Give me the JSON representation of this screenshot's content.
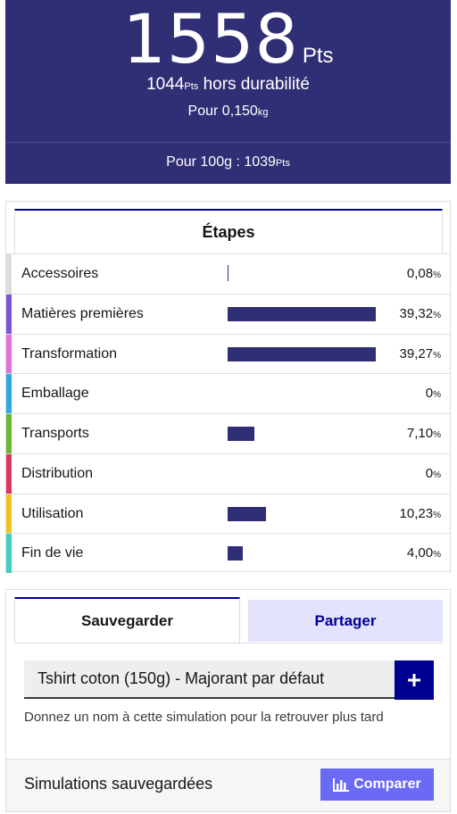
{
  "score": {
    "total": "1558",
    "unit": "Pts",
    "without_durability_value": "1044",
    "without_durability_unit": "Pts",
    "without_durability_label": "hors durabilité",
    "weight_prefix": "Pour 0,150",
    "weight_unit": "kg",
    "per100_label": "Pour 100g : 1039",
    "per100_unit": "Pts"
  },
  "steps": {
    "tab_label": "Étapes",
    "items": [
      {
        "label": "Accessoires",
        "value": "0,08",
        "pct": "%",
        "share": 0.0008,
        "color": "#dddddd"
      },
      {
        "label": "Matières premières",
        "value": "39,32",
        "pct": "%",
        "share": 0.3932,
        "color": "#7b55d9"
      },
      {
        "label": "Transformation",
        "value": "39,27",
        "pct": "%",
        "share": 0.3927,
        "color": "#e06fd9"
      },
      {
        "label": "Emballage",
        "value": "0",
        "pct": "%",
        "share": 0,
        "color": "#2ea8e0"
      },
      {
        "label": "Transports",
        "value": "7,10",
        "pct": "%",
        "share": 0.071,
        "color": "#6ab62f"
      },
      {
        "label": "Distribution",
        "value": "0",
        "pct": "%",
        "share": 0,
        "color": "#e1325e"
      },
      {
        "label": "Utilisation",
        "value": "10,23",
        "pct": "%",
        "share": 0.1023,
        "color": "#f4c21d"
      },
      {
        "label": "Fin de vie",
        "value": "4,00",
        "pct": "%",
        "share": 0.04,
        "color": "#3ecfc0"
      }
    ]
  },
  "save": {
    "tab_save": "Sauvegarder",
    "tab_share": "Partager",
    "name_value": "Tshirt coton (150g) - Majorant par défaut",
    "add_icon": "plus-icon",
    "hint": "Donnez un nom à cette simulation pour la retrouver plus tard",
    "saved_label": "Simulations sauvegardées",
    "compare_label": "Comparer",
    "compare_icon": "bar-chart-icon"
  }
}
